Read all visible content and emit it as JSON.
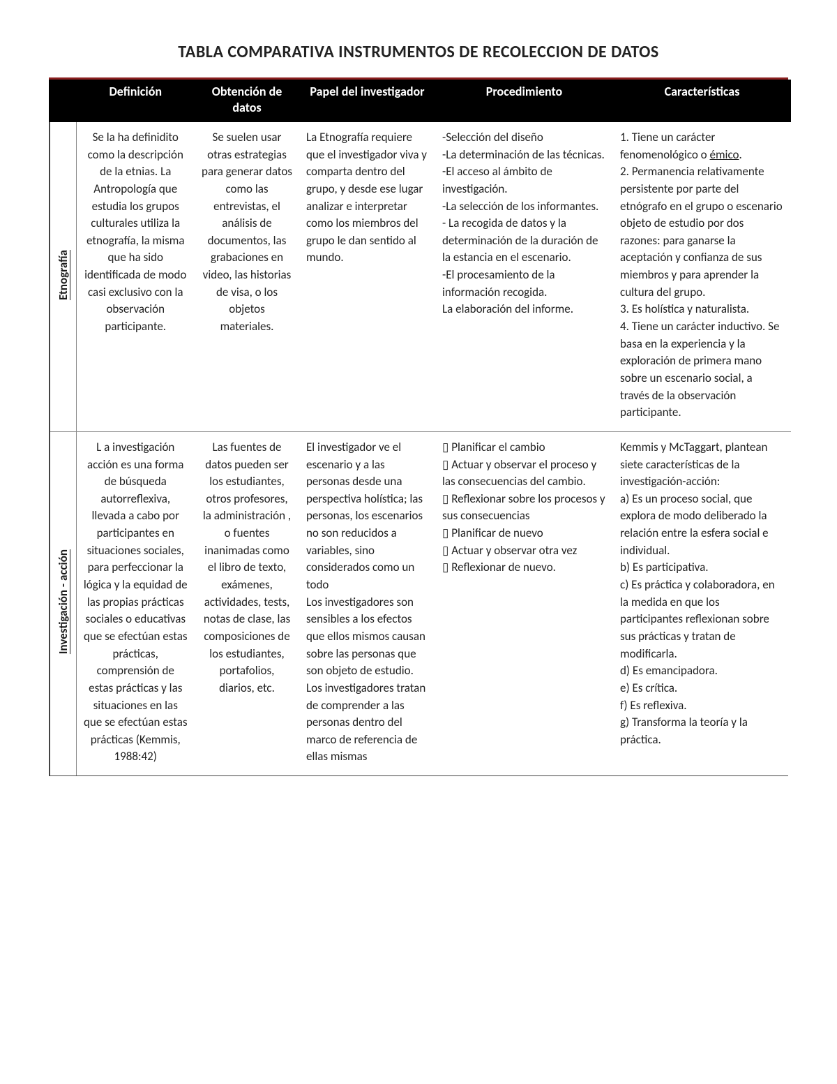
{
  "title": "TABLA COMPARATIVA INSTRUMENTOS DE RECOLECCION DE DATOS",
  "columns": {
    "rowhead": "",
    "definicion": "Definición",
    "obtencion": "Obtención de datos",
    "papel": "Papel del investigador",
    "procedimiento": "Procedimiento",
    "caracteristicas": "Características"
  },
  "rows": [
    {
      "label": "Etnografía",
      "definicion": "Se la ha definidito como la descripción de la etnias. La Antropología que estudia los grupos culturales utiliza la etnografía, la misma que ha sido identificada de modo casi exclusivo con la observación participante.",
      "obtencion": "Se suelen usar otras estrategias para generar datos como las entrevistas, el análisis de documentos, las grabaciones en video, las historias de visa, o los objetos materiales.",
      "papel": "La Etnografía requiere que el investigador viva y comparta dentro del grupo, y desde ese lugar analizar e interpretar como los miembros del grupo le dan sentido al mundo.",
      "procedimiento": "-Selección del diseño\n-La determinación de las técnicas.\n-El acceso al ámbito de investigación.\n-La selección de los informantes.\n- La recogida de datos y la determinación de la duración de la estancia en el escenario.\n-El procesamiento de la información recogida.\nLa elaboración del informe.",
      "caracteristicas_html": "1. Tiene un carácter fenomenológico o <span class=\"ul\">émico</span>.<br>2. Permanencia relativamente persistente por parte del etnógrafo en el grupo o escenario objeto de estudio por dos razones: para ganarse la aceptación y confianza de sus miembros y para aprender la cultura del grupo.<br>3. Es holística y naturalista.<br>4. Tiene un carácter inductivo. Se basa en la experiencia y la exploración de primera mano sobre un escenario social, a través de la observación participante."
    },
    {
      "label": "Investigación - acción",
      "definicion": "L a investigación acción es una forma de búsqueda autorreflexiva, llevada a cabo por participantes en situaciones sociales, para perfeccionar la lógica y la equidad de las propias prácticas sociales o educativas que se efectúan estas prácticas, comprensión de estas prácticas y las situaciones en las que se efectúan estas prácticas (Kemmis, 1988:42)",
      "obtencion": "Las fuentes de datos pueden ser los estudiantes, otros profesores, la administración , o fuentes inanimadas como el libro de texto, exámenes, actividades, tests, notas de clase, las composiciones de los estudiantes, portafolios, diarios, etc.",
      "papel": "El investigador ve el escenario y a las personas desde una perspectiva holística; las personas, los escenarios no son reducidos a variables, sino considerados como un todo\nLos investigadores son sensibles a los efectos que ellos mismos causan sobre las personas que son objeto de estudio.\nLos investigadores tratan de comprender a las personas dentro del marco de referencia de ellas mismas",
      "procedimiento": "▯ Planificar el cambio\n▯ Actuar y observar el proceso y las consecuencias del cambio.\n▯ Reflexionar sobre los procesos y sus consecuencias\n▯ Planificar de nuevo\n▯ Actuar y observar otra vez\n▯ Reflexionar de nuevo.",
      "caracteristicas_html": "Kemmis y McTaggart, plantean siete características de la investigación-acción:<br>a) Es un proceso social, que explora de modo deliberado la relación entre la esfera social e individual.<br>b) Es participativa.<br>c) Es práctica y colaboradora, en la medida en que los participantes reflexionan sobre sus prácticas y tratan de modificarla.<br>d) Es emancipadora.<br>e) Es crítica.<br>f) Es reflexiva.<br>g) Transforma la teoría y la práctica."
    }
  ]
}
